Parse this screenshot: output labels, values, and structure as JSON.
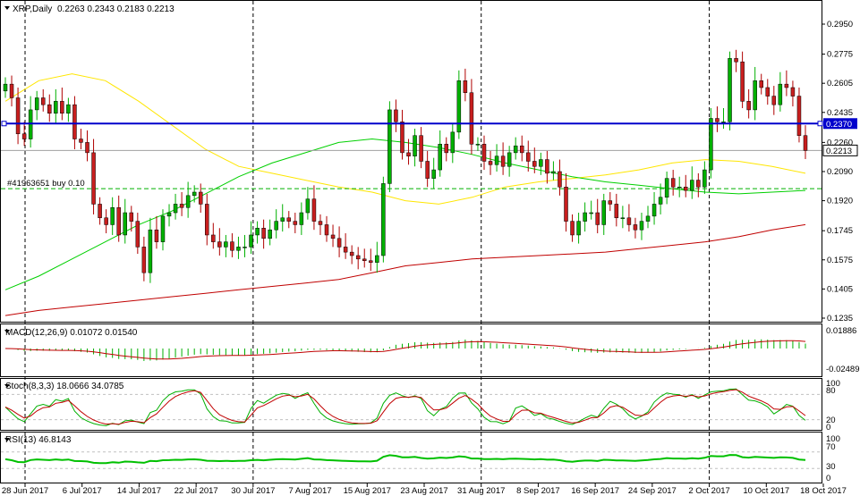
{
  "symbol_header": {
    "symbol": "XRP,Daily",
    "ohlc": "0.2263 0.2343 0.2183 0.2213"
  },
  "price_pane": {
    "y_ticks": [
      "0.2950",
      "0.2775",
      "0.2605",
      "0.2435",
      "0.2260",
      "0.2090",
      "0.1920",
      "0.1745",
      "0.1575",
      "0.1405",
      "0.1235"
    ],
    "ylim": [
      0.1235,
      0.295
    ],
    "horizontal_line_label": "0.2370",
    "current_price_label": "0.2213",
    "order_label": "#41963651 buy 0.10"
  },
  "macd_pane": {
    "title": "MACD(12,26,9) 0.01072 0.01540",
    "y_ticks": [
      "0.01886",
      "-0.02489"
    ]
  },
  "stoch_pane": {
    "title": "Stoch(8,3,3) 18.0666 34.0785",
    "y_ticks": [
      "100",
      "80",
      "20",
      "0"
    ]
  },
  "rsi_pane": {
    "title": "RSI(13) 46.8143",
    "y_ticks": [
      "100",
      "70",
      "30",
      "0"
    ]
  },
  "chart_data": {
    "type": "line",
    "title": "",
    "x_ticks": [
      "28 Jun 2017",
      "6 Jul 2017",
      "14 Jul 2017",
      "22 Jul 2017",
      "30 Jul 2017",
      "7 Aug 2017",
      "15 Aug 2017",
      "23 Aug 2017",
      "31 Aug 2017",
      "8 Sep 2017",
      "16 Sep 2017",
      "24 Sep 2017",
      "2 Oct 2017",
      "10 Oct 2017",
      "18 Oct 2017"
    ],
    "horizontal_line": 0.237,
    "order_price": 0.199,
    "last_close": 0.2213,
    "candles_close": [
      0.26,
      0.252,
      0.231,
      0.228,
      0.245,
      0.252,
      0.248,
      0.243,
      0.25,
      0.243,
      0.248,
      0.228,
      0.226,
      0.22,
      0.19,
      0.182,
      0.178,
      0.188,
      0.172,
      0.185,
      0.18,
      0.165,
      0.15,
      0.175,
      0.168,
      0.183,
      0.185,
      0.19,
      0.188,
      0.195,
      0.197,
      0.19,
      0.172,
      0.168,
      0.165,
      0.168,
      0.163,
      0.165,
      0.165,
      0.172,
      0.176,
      0.17,
      0.175,
      0.18,
      0.182,
      0.18,
      0.178,
      0.185,
      0.193,
      0.18,
      0.178,
      0.172,
      0.17,
      0.165,
      0.162,
      0.16,
      0.158,
      0.157,
      0.156,
      0.16,
      0.202,
      0.245,
      0.238,
      0.22,
      0.218,
      0.23,
      0.215,
      0.205,
      0.21,
      0.225,
      0.22,
      0.232,
      0.262,
      0.255,
      0.225,
      0.225,
      0.215,
      0.213,
      0.218,
      0.212,
      0.22,
      0.224,
      0.22,
      0.215,
      0.212,
      0.216,
      0.208,
      0.209,
      0.2,
      0.18,
      0.172,
      0.18,
      0.185,
      0.185,
      0.178,
      0.192,
      0.19,
      0.182,
      0.182,
      0.178,
      0.175,
      0.18,
      0.183,
      0.19,
      0.194,
      0.205,
      0.2,
      0.2,
      0.198,
      0.204,
      0.2,
      0.21,
      0.24,
      0.238,
      0.238,
      0.275,
      0.273,
      0.25,
      0.245,
      0.262,
      0.258,
      0.253,
      0.248,
      0.26,
      0.258,
      0.253,
      0.23,
      0.2213
    ],
    "series": [
      {
        "name": "",
        "color": "#ffe600",
        "values": [
          0.25,
          0.262,
          0.266,
          0.262,
          0.25,
          0.236,
          0.222,
          0.212,
          0.208,
          0.204,
          0.2,
          0.197,
          0.192,
          0.19,
          0.194,
          0.2,
          0.203,
          0.205,
          0.207,
          0.21,
          0.214,
          0.216,
          0.215,
          0.212,
          0.208
        ]
      },
      {
        "name": "",
        "color": "#00d000",
        "values": [
          0.14,
          0.148,
          0.158,
          0.168,
          0.178,
          0.186,
          0.196,
          0.206,
          0.214,
          0.22,
          0.226,
          0.228,
          0.226,
          0.223,
          0.219,
          0.214,
          0.21,
          0.206,
          0.203,
          0.201,
          0.199,
          0.197,
          0.196,
          0.197,
          0.198
        ]
      },
      {
        "name": "",
        "color": "#c00000",
        "values": [
          0.125,
          0.128,
          0.13,
          0.132,
          0.134,
          0.136,
          0.138,
          0.14,
          0.142,
          0.144,
          0.146,
          0.15,
          0.154,
          0.156,
          0.158,
          0.159,
          0.16,
          0.161,
          0.162,
          0.164,
          0.166,
          0.168,
          0.171,
          0.175,
          0.178
        ]
      }
    ]
  }
}
